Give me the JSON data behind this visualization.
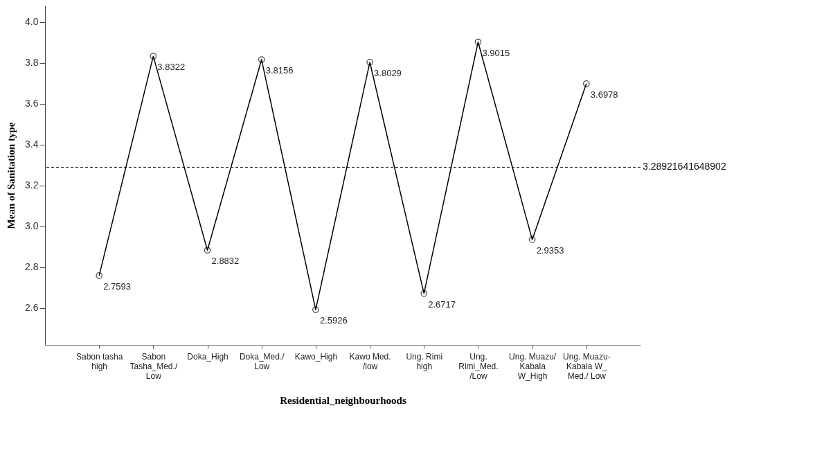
{
  "chart_data": {
    "type": "line",
    "xlabel": "Residential_neighbourhoods",
    "ylabel": "Mean of Sanitation type",
    "categories": [
      "Sabon tasha high",
      "Sabon Tasha_Med./ Low",
      "Doka_High",
      "Doka_Med./ Low",
      "Kawo_High",
      "Kawo Med. /low",
      "Ung. Rimi high",
      "Ung. Rimi_Med. /Low",
      "Ung. Muazu/ Kabala W_High",
      "Ung. Muazu- Kabala W_ Med./ Low"
    ],
    "series": [
      {
        "color": "#000000",
        "values": [
          2.7593,
          3.8322,
          2.8832,
          3.8156,
          2.5926,
          3.8029,
          2.6717,
          3.9015,
          2.9353,
          3.6978
        ]
      }
    ],
    "ylim": [
      2.42,
      4.08
    ],
    "yticks": [
      2.6,
      2.8,
      {
        "value": 3,
        "label": "3.0"
      },
      3.2,
      3.4,
      3.6,
      3.8,
      {
        "value": 4,
        "label": "4.0"
      }
    ],
    "ref_lines": [
      {
        "axis": "y",
        "value": 3.28921641648902,
        "label": "3.28921641648902",
        "line_style": "dashed",
        "color": "#000000"
      }
    ],
    "data_labels": true,
    "marker": "circle",
    "line_style": "solid",
    "grid": false
  }
}
